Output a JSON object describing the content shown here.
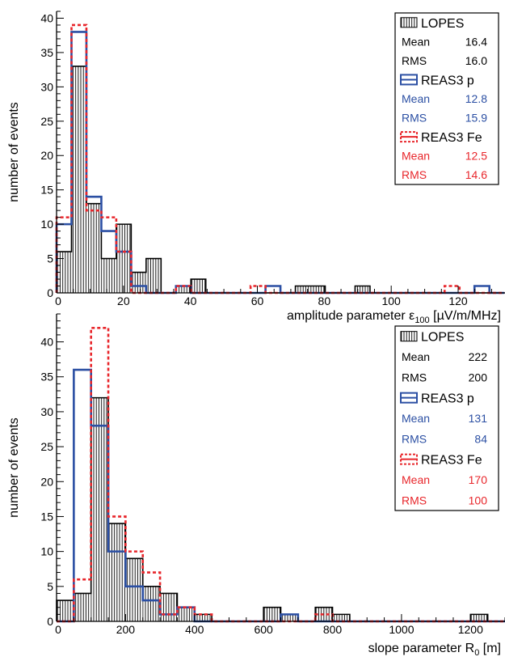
{
  "chart_data": [
    {
      "type": "histogram",
      "title": "",
      "xlabel": "amplitude parameter ε",
      "xlabel_sub": "100",
      "xlabel_unit": " [µV/m/MHz]",
      "ylabel": "number of events",
      "xlim": [
        0,
        134
      ],
      "ylim": [
        0,
        41
      ],
      "x_ticks": [
        0,
        20,
        40,
        60,
        80,
        100,
        120
      ],
      "y_ticks": [
        0,
        5,
        10,
        15,
        20,
        25,
        30,
        35,
        40
      ],
      "bin_width": 4.46,
      "series": [
        {
          "name": "LOPES",
          "style": "hatched",
          "color": "#000000",
          "values": [
            6,
            33,
            13,
            5,
            10,
            3,
            5,
            0,
            1,
            2,
            0,
            0,
            0,
            0,
            0,
            0,
            1,
            1,
            0,
            0,
            1,
            0,
            0,
            0,
            0,
            0,
            0,
            0,
            0,
            0
          ]
        },
        {
          "name": "REAS3 p",
          "style": "solid",
          "color": "#2b4fa3",
          "values": [
            10,
            38,
            14,
            9,
            6,
            1,
            0,
            0,
            1,
            0,
            0,
            0,
            0,
            0,
            1,
            0,
            0,
            0,
            0,
            0,
            0,
            0,
            0,
            0,
            0,
            0,
            0,
            0,
            1,
            0
          ]
        },
        {
          "name": "REAS3 Fe",
          "style": "dashed",
          "color": "#e8262b",
          "values": [
            11,
            39,
            12,
            11,
            6,
            0,
            0,
            0,
            1,
            0,
            0,
            0,
            0,
            1,
            0,
            0,
            0,
            0,
            0,
            0,
            0,
            0,
            0,
            0,
            0,
            0,
            1,
            0,
            0,
            0
          ]
        }
      ],
      "legend": {
        "placement": "top-right",
        "entries": [
          {
            "label": "LOPES",
            "stats": [
              {
                "k": "Mean",
                "v": "16.4"
              },
              {
                "k": "RMS",
                "v": "16.0"
              }
            ]
          },
          {
            "label": "REAS3 p",
            "stats": [
              {
                "k": "Mean",
                "v": "12.8"
              },
              {
                "k": "RMS",
                "v": "15.9"
              }
            ]
          },
          {
            "label": "REAS3 Fe",
            "stats": [
              {
                "k": "Mean",
                "v": "12.5"
              },
              {
                "k": "RMS",
                "v": "14.6"
              }
            ]
          }
        ]
      }
    },
    {
      "type": "histogram",
      "title": "",
      "xlabel": "slope parameter R",
      "xlabel_sub": "0",
      "xlabel_unit": " [m]",
      "ylabel": "number of events",
      "xlim": [
        0,
        1300
      ],
      "ylim": [
        0,
        44
      ],
      "x_ticks": [
        0,
        200,
        400,
        600,
        800,
        1000,
        1200
      ],
      "y_ticks": [
        0,
        5,
        10,
        15,
        20,
        25,
        30,
        35,
        40
      ],
      "bin_width": 50,
      "series": [
        {
          "name": "LOPES",
          "style": "hatched",
          "color": "#000000",
          "values": [
            3,
            4,
            32,
            14,
            9,
            5,
            4,
            2,
            1,
            0,
            0,
            0,
            2,
            1,
            0,
            2,
            1,
            0,
            0,
            0,
            0,
            0,
            0,
            0,
            1,
            0
          ]
        },
        {
          "name": "REAS3 p",
          "style": "solid",
          "color": "#2b4fa3",
          "values": [
            0,
            36,
            28,
            10,
            5,
            3,
            1,
            2,
            0,
            0,
            0,
            0,
            0,
            1,
            0,
            0,
            0,
            0,
            0,
            0,
            0,
            0,
            0,
            0,
            0,
            0
          ]
        },
        {
          "name": "REAS3 Fe",
          "style": "dashed",
          "color": "#e8262b",
          "values": [
            0,
            6,
            42,
            15,
            10,
            7,
            1,
            2,
            1,
            0,
            0,
            0,
            0,
            0,
            0,
            1,
            0,
            0,
            0,
            0,
            0,
            0,
            0,
            0,
            0,
            0
          ]
        }
      ],
      "legend": {
        "placement": "top-right",
        "entries": [
          {
            "label": "LOPES",
            "stats": [
              {
                "k": "Mean",
                "v": "222"
              },
              {
                "k": "RMS",
                "v": "200"
              }
            ]
          },
          {
            "label": "REAS3 p",
            "stats": [
              {
                "k": "Mean",
                "v": "131"
              },
              {
                "k": "RMS",
                "v": "84"
              }
            ]
          },
          {
            "label": "REAS3 Fe",
            "stats": [
              {
                "k": "Mean",
                "v": "170"
              },
              {
                "k": "RMS",
                "v": "100"
              }
            ]
          }
        ]
      }
    }
  ]
}
